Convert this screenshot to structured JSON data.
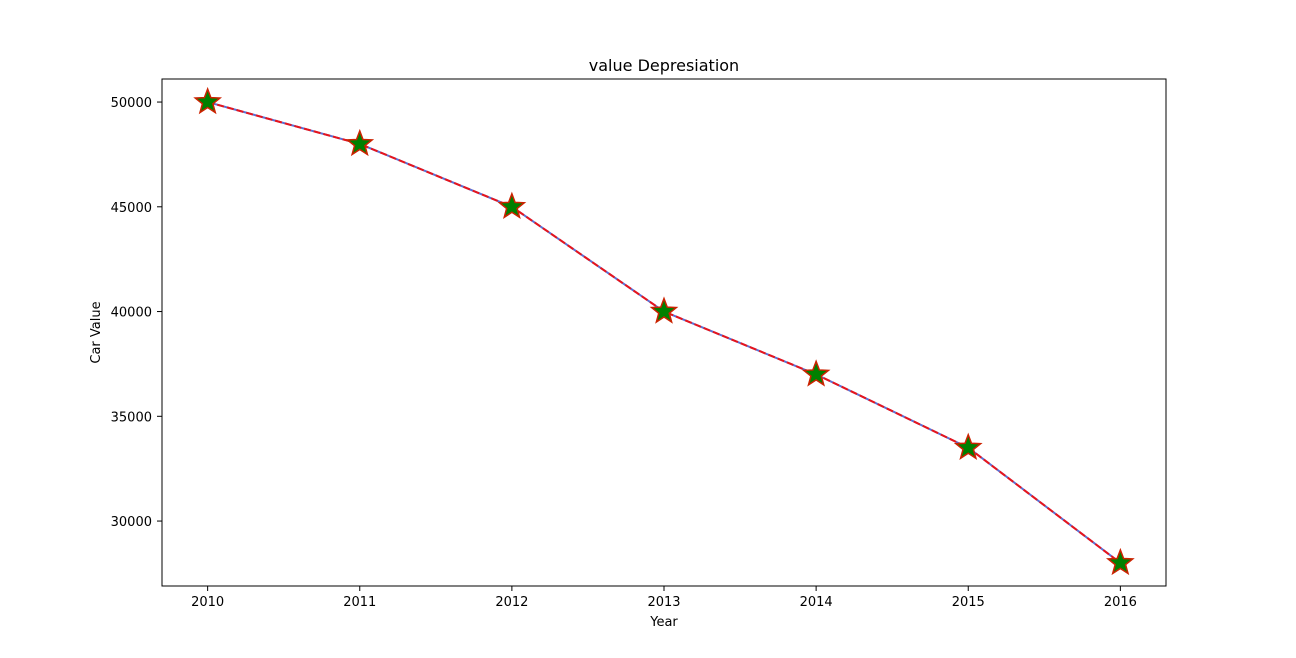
{
  "chart_data": {
    "type": "line",
    "title": "value Depresiation",
    "xlabel": "Year",
    "ylabel": "Car Value",
    "x": [
      2010,
      2011,
      2012,
      2013,
      2014,
      2015,
      2016
    ],
    "x_tick_labels": [
      "2010",
      "2011",
      "2012",
      "2013",
      "2014",
      "2015",
      "2016"
    ],
    "series": [
      {
        "values": [
          50000,
          48000,
          45000,
          40000,
          37000,
          33500,
          28000
        ]
      }
    ],
    "xlim": [
      2009.7,
      2016.3
    ],
    "ylim": [
      26900,
      51100
    ],
    "y_ticks": [
      30000,
      35000,
      40000,
      45000,
      50000
    ],
    "y_tick_labels": [
      "30000",
      "35000",
      "40000",
      "45000",
      "50000"
    ],
    "grid": false,
    "line_style": "dashed",
    "marker": "star",
    "colors": {
      "line_base": "#5b6fd4",
      "line_dash": "#e8141b",
      "marker_fill": "#008000",
      "marker_edge": "#cc2200",
      "axes": "#000000"
    }
  }
}
